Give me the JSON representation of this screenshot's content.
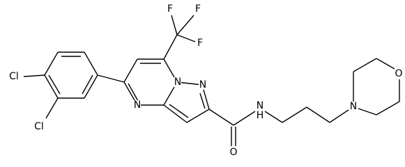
{
  "nodes": [
    {
      "label": "F"
    },
    {
      "label": "F"
    },
    {
      "label": "F"
    },
    {
      "label": "Cl"
    },
    {
      "label": "Cl"
    },
    {
      "label": "N"
    },
    {
      "label": "N"
    },
    {
      "label": "N"
    },
    {
      "label": "N"
    },
    {
      "label": "H"
    },
    {
      "label": "O"
    },
    {
      "label": "N"
    },
    {
      "label": "O"
    }
  ]
}
